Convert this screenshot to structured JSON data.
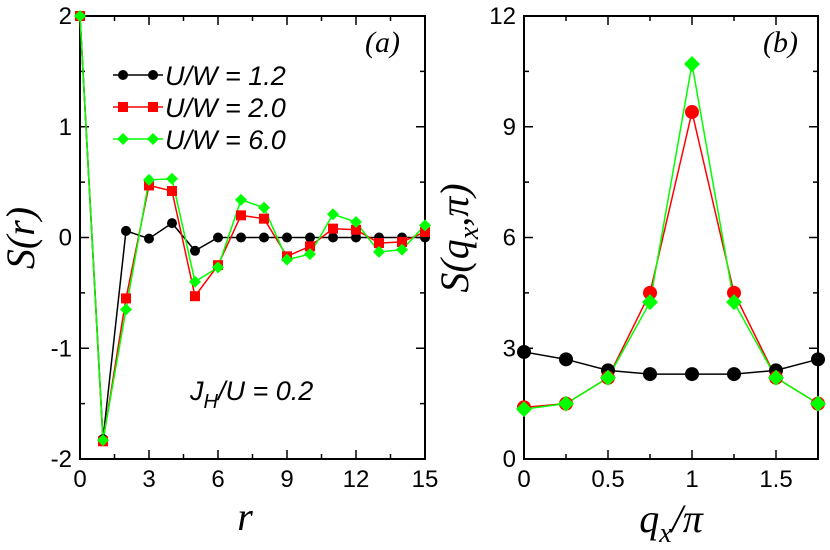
{
  "chart_data": [
    {
      "type": "line",
      "panel_label": "(a)",
      "xlabel": "r",
      "ylabel": "S(r)",
      "xlim": [
        0,
        15
      ],
      "ylim": [
        -2,
        2
      ],
      "x_ticks": [
        0,
        3,
        6,
        9,
        12,
        15
      ],
      "x_tick_labels": [
        "0",
        "3",
        "6",
        "9",
        "12",
        "15"
      ],
      "y_ticks": [
        -2,
        -1,
        0,
        1,
        2
      ],
      "y_tick_labels": [
        "-2",
        "-1",
        "0",
        "1",
        "2"
      ],
      "annotation": "J_H/U = 0.2",
      "annotation_parts": {
        "main": "J",
        "sub": "H",
        "rest": "/U = 0.2"
      },
      "x": [
        0,
        1,
        2,
        3,
        4,
        5,
        6,
        7,
        8,
        9,
        10,
        11,
        12,
        13,
        14,
        15
      ],
      "series": [
        {
          "name": "U/W = 1.2",
          "color": "#000000",
          "marker": "circle",
          "values": [
            2.0,
            -1.82,
            0.06,
            -0.01,
            0.13,
            -0.12,
            0.0,
            0.0,
            0.0,
            0.0,
            0.0,
            0.0,
            0.0,
            0.0,
            0.0,
            0.0
          ]
        },
        {
          "name": "U/W = 2.0",
          "color": "#ff0000",
          "marker": "square",
          "values": [
            2.0,
            -1.84,
            -0.55,
            0.47,
            0.42,
            -0.53,
            -0.25,
            0.2,
            0.17,
            -0.17,
            -0.08,
            0.08,
            0.07,
            -0.05,
            -0.04,
            0.05
          ]
        },
        {
          "name": "U/W = 6.0",
          "color": "#00ff00",
          "marker": "diamond",
          "values": [
            2.0,
            -1.83,
            -0.65,
            0.52,
            0.53,
            -0.4,
            -0.27,
            0.34,
            0.27,
            -0.2,
            -0.15,
            0.21,
            0.14,
            -0.13,
            -0.11,
            0.11
          ]
        }
      ]
    },
    {
      "type": "line",
      "panel_label": "(b)",
      "xlabel": "q_x/π",
      "xlabel_parts": {
        "main": "q",
        "sub": "x",
        "rest": "/π"
      },
      "ylabel": "S(q_x,π)",
      "ylabel_parts": {
        "main": "S(q",
        "sub": "x",
        "rest": ",π)"
      },
      "xlim": [
        0,
        1.75
      ],
      "ylim": [
        0,
        12
      ],
      "x_ticks": [
        0,
        0.5,
        1,
        1.5
      ],
      "x_tick_labels": [
        "0",
        "0.5",
        "1",
        "1.5"
      ],
      "y_ticks": [
        0,
        3,
        6,
        9,
        12
      ],
      "y_tick_labels": [
        "0",
        "3",
        "6",
        "9",
        "12"
      ],
      "x": [
        0,
        0.25,
        0.5,
        0.75,
        1.0,
        1.25,
        1.5,
        1.75
      ],
      "series": [
        {
          "name": "U/W = 1.2",
          "color": "#000000",
          "marker": "circle",
          "values": [
            2.9,
            2.7,
            2.4,
            2.3,
            2.3,
            2.3,
            2.4,
            2.7
          ]
        },
        {
          "name": "U/W = 2.0",
          "color": "#ff0000",
          "marker": "circle",
          "values": [
            1.4,
            1.5,
            2.2,
            4.5,
            9.4,
            4.5,
            2.2,
            1.5
          ]
        },
        {
          "name": "U/W = 6.0",
          "color": "#00ff00",
          "marker": "diamond",
          "values": [
            1.35,
            1.5,
            2.2,
            4.25,
            10.7,
            4.25,
            2.2,
            1.5
          ]
        }
      ]
    }
  ]
}
